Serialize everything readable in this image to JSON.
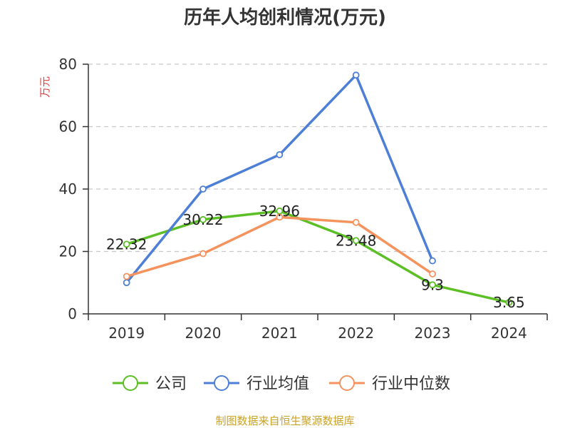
{
  "chart_data": {
    "type": "line",
    "title": "历年人均创利情况(万元)",
    "ylabel": "万元",
    "xlabel": "",
    "categories": [
      "2019",
      "2020",
      "2021",
      "2022",
      "2023",
      "2024"
    ],
    "ylim": [
      0,
      80
    ],
    "yticks": [
      0,
      20,
      40,
      60,
      80
    ],
    "grid": true,
    "legend_position": "bottom",
    "series": [
      {
        "name": "公司",
        "color": "#5cbf26",
        "values": [
          22.32,
          30.22,
          32.96,
          23.48,
          9.3,
          3.65
        ],
        "labels": [
          "22.32",
          "30.22",
          "32.96",
          "23.48",
          "9.3",
          "3.65"
        ]
      },
      {
        "name": "行业均值",
        "color": "#4e7fd6",
        "values": [
          10,
          40,
          51,
          76.5,
          17,
          null
        ]
      },
      {
        "name": "行业中位数",
        "color": "#f5935e",
        "values": [
          12,
          19.3,
          31,
          29.3,
          12.8,
          null
        ]
      }
    ],
    "source": "制图数据来自恒生聚源数据库"
  }
}
